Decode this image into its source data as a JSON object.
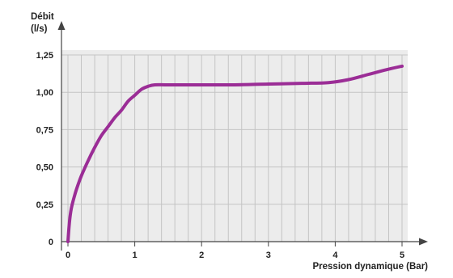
{
  "chart_data": {
    "type": "line",
    "title": "",
    "ylabel": [
      "Débit",
      "(l/s)"
    ],
    "xlabel": "Pression dynamique (Bar)",
    "x_ticks": [
      "0",
      "1",
      "2",
      "3",
      "4",
      "5"
    ],
    "y_ticks": [
      "0",
      "0,25",
      "0,50",
      "0,75",
      "1,00",
      "1,25"
    ],
    "xlim": [
      0,
      5
    ],
    "ylim": [
      0,
      1.25
    ],
    "grid": true,
    "series": [
      {
        "color": "#9b2d96",
        "points": [
          [
            0,
            0
          ],
          [
            0.02,
            0.12
          ],
          [
            0.05,
            0.22
          ],
          [
            0.1,
            0.31
          ],
          [
            0.15,
            0.38
          ],
          [
            0.2,
            0.44
          ],
          [
            0.3,
            0.54
          ],
          [
            0.4,
            0.63
          ],
          [
            0.5,
            0.71
          ],
          [
            0.6,
            0.77
          ],
          [
            0.7,
            0.83
          ],
          [
            0.8,
            0.88
          ],
          [
            0.9,
            0.94
          ],
          [
            1.0,
            0.98
          ],
          [
            1.1,
            1.02
          ],
          [
            1.2,
            1.04
          ],
          [
            1.3,
            1.05
          ],
          [
            1.5,
            1.05
          ],
          [
            2.0,
            1.05
          ],
          [
            2.5,
            1.05
          ],
          [
            3.0,
            1.055
          ],
          [
            3.5,
            1.06
          ],
          [
            3.9,
            1.065
          ],
          [
            4.2,
            1.085
          ],
          [
            4.5,
            1.12
          ],
          [
            4.8,
            1.155
          ],
          [
            5.0,
            1.175
          ]
        ]
      }
    ]
  },
  "colors": {
    "plot_background": "#ececec",
    "grid": "#c4c4c4",
    "axis": "#444444",
    "line": "#9b2d96"
  }
}
